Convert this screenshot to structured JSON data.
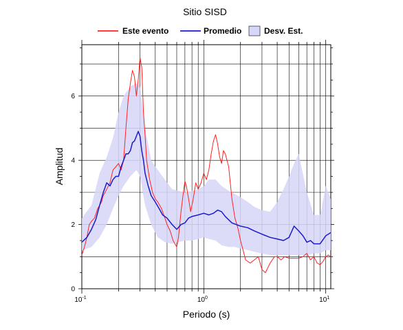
{
  "chart_data": {
    "type": "line",
    "title": "Sitio SISD",
    "xlabel": "Periodo (s)",
    "ylabel": "Amplitud",
    "x_scale": "log",
    "xlim": [
      0.1,
      11
    ],
    "ylim": [
      0,
      7.6
    ],
    "grid": true,
    "legend_position": "top",
    "x_ticks": [
      {
        "value": 0.1,
        "base": "10",
        "exp": "-1"
      },
      {
        "value": 1,
        "base": "10",
        "exp": "0"
      },
      {
        "value": 10,
        "base": "10",
        "exp": "1"
      }
    ],
    "y_ticks": [
      {
        "value": 0,
        "label": "0"
      },
      {
        "value": 2,
        "label": "2"
      },
      {
        "value": 4,
        "label": "4"
      },
      {
        "value": 6,
        "label": "6"
      }
    ],
    "legend": [
      {
        "key": "event",
        "label": "Este evento",
        "kind": "line",
        "color": "#ff2020"
      },
      {
        "key": "mean",
        "label": "Promedio",
        "kind": "line",
        "color": "#1a1acc"
      },
      {
        "key": "std",
        "label": "Desv. Est.",
        "kind": "band",
        "color": "#d6d6f8"
      }
    ],
    "band": {
      "name": "Desv. Est.",
      "color": "#d6d6f8",
      "x": [
        0.1,
        0.12,
        0.14,
        0.16,
        0.18,
        0.2,
        0.22,
        0.25,
        0.28,
        0.3,
        0.33,
        0.37,
        0.42,
        0.48,
        0.55,
        0.62,
        0.7,
        0.8,
        0.9,
        1.0,
        1.1,
        1.25,
        1.4,
        1.6,
        1.8,
        2.0,
        2.3,
        2.6,
        3.0,
        3.5,
        4.0,
        4.5,
        5.0,
        5.5,
        6.0,
        7.0,
        8.0,
        9.0,
        10.0,
        11.0
      ],
      "upper": [
        2.2,
        2.6,
        3.6,
        4.1,
        4.7,
        5.5,
        6.0,
        6.3,
        6.4,
        6.3,
        5.0,
        4.0,
        3.7,
        3.4,
        3.1,
        3.05,
        3.0,
        3.05,
        3.1,
        3.2,
        3.4,
        3.4,
        3.2,
        3.05,
        2.95,
        2.85,
        2.7,
        2.55,
        2.45,
        2.4,
        2.7,
        3.1,
        3.5,
        3.9,
        4.2,
        3.0,
        2.3,
        2.3,
        3.2,
        2.8
      ],
      "lower": [
        1.2,
        1.3,
        1.6,
        2.0,
        2.5,
        2.9,
        3.2,
        3.5,
        3.7,
        3.5,
        2.6,
        2.0,
        1.6,
        1.45,
        1.4,
        1.45,
        1.5,
        1.5,
        1.55,
        1.6,
        1.55,
        1.5,
        1.35,
        1.3,
        1.3,
        1.25,
        1.2,
        1.15,
        1.1,
        1.05,
        1.05,
        1.05,
        1.05,
        1.05,
        1.05,
        1.05,
        1.1,
        1.1,
        1.2,
        1.2
      ]
    },
    "series": [
      {
        "key": "event",
        "name": "Este evento",
        "color": "#ff2020",
        "x": [
          0.1,
          0.105,
          0.11,
          0.115,
          0.12,
          0.127,
          0.135,
          0.14,
          0.145,
          0.15,
          0.16,
          0.17,
          0.18,
          0.19,
          0.2,
          0.21,
          0.22,
          0.23,
          0.24,
          0.25,
          0.26,
          0.27,
          0.28,
          0.29,
          0.3,
          0.31,
          0.32,
          0.33,
          0.34,
          0.36,
          0.38,
          0.4,
          0.42,
          0.45,
          0.48,
          0.5,
          0.53,
          0.56,
          0.6,
          0.62,
          0.65,
          0.68,
          0.7,
          0.72,
          0.75,
          0.78,
          0.82,
          0.86,
          0.9,
          0.95,
          1.0,
          1.05,
          1.1,
          1.15,
          1.2,
          1.25,
          1.3,
          1.35,
          1.4,
          1.45,
          1.5,
          1.6,
          1.7,
          1.8,
          1.9,
          2.0,
          2.1,
          2.2,
          2.4,
          2.6,
          2.8,
          3.0,
          3.2,
          3.5,
          3.8,
          4.0,
          4.3,
          4.6,
          5.0,
          5.5,
          6.0,
          6.5,
          7.0,
          7.5,
          8.0,
          8.5,
          9.0,
          9.5,
          10.0,
          10.5,
          11.0
        ],
        "y": [
          1.05,
          1.3,
          1.6,
          2.0,
          2.1,
          2.2,
          2.5,
          2.6,
          2.7,
          2.9,
          3.1,
          3.3,
          3.7,
          3.8,
          3.9,
          3.7,
          4.0,
          5.0,
          5.9,
          6.4,
          6.8,
          6.6,
          6.0,
          6.5,
          7.2,
          6.9,
          5.5,
          4.8,
          4.0,
          3.4,
          3.0,
          2.8,
          2.7,
          2.5,
          2.2,
          2.0,
          1.8,
          1.5,
          1.3,
          1.6,
          2.4,
          3.0,
          3.35,
          3.2,
          2.8,
          2.4,
          2.8,
          3.3,
          3.1,
          3.3,
          3.6,
          3.4,
          3.7,
          4.2,
          4.6,
          4.8,
          4.5,
          4.1,
          3.9,
          4.3,
          4.2,
          3.8,
          2.8,
          2.2,
          1.9,
          1.5,
          1.2,
          0.9,
          0.8,
          0.9,
          1.0,
          0.6,
          0.5,
          0.8,
          1.0,
          1.0,
          0.9,
          1.0,
          0.95,
          0.95,
          0.95,
          1.0,
          1.1,
          0.9,
          1.0,
          0.8,
          0.75,
          0.85,
          1.0,
          1.05,
          1.0
        ]
      },
      {
        "key": "mean",
        "name": "Promedio",
        "color": "#1a1acc",
        "x": [
          0.1,
          0.11,
          0.12,
          0.13,
          0.14,
          0.15,
          0.16,
          0.17,
          0.18,
          0.19,
          0.2,
          0.21,
          0.22,
          0.23,
          0.24,
          0.25,
          0.26,
          0.27,
          0.28,
          0.29,
          0.3,
          0.31,
          0.32,
          0.33,
          0.35,
          0.37,
          0.4,
          0.43,
          0.46,
          0.5,
          0.55,
          0.6,
          0.65,
          0.7,
          0.75,
          0.8,
          0.9,
          1.0,
          1.1,
          1.2,
          1.3,
          1.4,
          1.5,
          1.7,
          2.0,
          2.3,
          2.6,
          3.0,
          3.5,
          4.0,
          4.5,
          5.0,
          5.5,
          6.0,
          6.5,
          7.0,
          7.5,
          8.0,
          9.0,
          10.0,
          10.5,
          11.0
        ],
        "y": [
          1.45,
          1.6,
          1.85,
          2.15,
          2.6,
          3.0,
          3.3,
          3.2,
          3.4,
          3.5,
          3.5,
          3.8,
          4.0,
          4.2,
          4.2,
          4.3,
          4.55,
          4.6,
          4.75,
          4.9,
          4.75,
          4.3,
          4.0,
          3.6,
          3.2,
          2.9,
          2.7,
          2.5,
          2.3,
          2.2,
          2.0,
          1.85,
          2.0,
          2.05,
          2.2,
          2.25,
          2.3,
          2.35,
          2.3,
          2.35,
          2.45,
          2.4,
          2.25,
          2.05,
          1.95,
          1.9,
          1.8,
          1.7,
          1.6,
          1.55,
          1.5,
          1.6,
          1.95,
          1.8,
          1.65,
          1.45,
          1.5,
          1.4,
          1.4,
          1.65,
          1.7,
          1.75
        ]
      }
    ]
  }
}
